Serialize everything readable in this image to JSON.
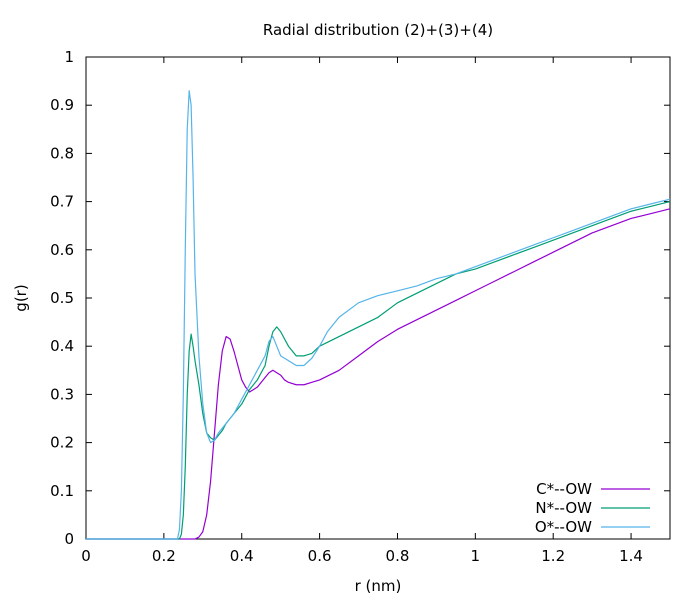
{
  "chart_data": {
    "type": "line",
    "title": "Radial distribution (2)+(3)+(4)",
    "xlabel": "r (nm)",
    "ylabel": "g(r)",
    "xlim": [
      0,
      1.5
    ],
    "ylim": [
      0,
      1
    ],
    "x_ticks": [
      0,
      0.2,
      0.4,
      0.6,
      0.8,
      1,
      1.2,
      1.4
    ],
    "x_tick_labels": [
      "0",
      "0.2",
      "0.4",
      "0.6",
      "0.8",
      "1",
      "1.2",
      "1.4"
    ],
    "y_ticks": [
      0,
      0.1,
      0.2,
      0.3,
      0.4,
      0.5,
      0.6,
      0.7,
      0.8,
      0.9,
      1
    ],
    "y_tick_labels": [
      "0",
      "0.1",
      "0.2",
      "0.3",
      "0.4",
      "0.5",
      "0.6",
      "0.7",
      "0.8",
      "0.9",
      "1"
    ],
    "grid": false,
    "legend_position": "bottom-right",
    "series": [
      {
        "name": "C*--OW",
        "color": "#9400d3",
        "points": [
          [
            0,
            0
          ],
          [
            0.28,
            0
          ],
          [
            0.29,
            0.004
          ],
          [
            0.3,
            0.015
          ],
          [
            0.31,
            0.05
          ],
          [
            0.32,
            0.12
          ],
          [
            0.33,
            0.22
          ],
          [
            0.34,
            0.32
          ],
          [
            0.35,
            0.39
          ],
          [
            0.36,
            0.42
          ],
          [
            0.37,
            0.415
          ],
          [
            0.38,
            0.39
          ],
          [
            0.39,
            0.36
          ],
          [
            0.4,
            0.33
          ],
          [
            0.41,
            0.315
          ],
          [
            0.42,
            0.305
          ],
          [
            0.43,
            0.31
          ],
          [
            0.44,
            0.315
          ],
          [
            0.45,
            0.325
          ],
          [
            0.46,
            0.335
          ],
          [
            0.47,
            0.345
          ],
          [
            0.48,
            0.35
          ],
          [
            0.49,
            0.345
          ],
          [
            0.5,
            0.34
          ],
          [
            0.51,
            0.33
          ],
          [
            0.52,
            0.325
          ],
          [
            0.54,
            0.32
          ],
          [
            0.56,
            0.32
          ],
          [
            0.58,
            0.325
          ],
          [
            0.6,
            0.33
          ],
          [
            0.65,
            0.35
          ],
          [
            0.7,
            0.38
          ],
          [
            0.75,
            0.41
          ],
          [
            0.8,
            0.435
          ],
          [
            0.85,
            0.455
          ],
          [
            0.9,
            0.475
          ],
          [
            0.95,
            0.495
          ],
          [
            1.0,
            0.515
          ],
          [
            1.05,
            0.535
          ],
          [
            1.1,
            0.555
          ],
          [
            1.15,
            0.575
          ],
          [
            1.2,
            0.595
          ],
          [
            1.25,
            0.615
          ],
          [
            1.3,
            0.635
          ],
          [
            1.35,
            0.65
          ],
          [
            1.4,
            0.665
          ],
          [
            1.45,
            0.675
          ],
          [
            1.5,
            0.685
          ]
        ]
      },
      {
        "name": "N*--OW",
        "color": "#009e73",
        "points": [
          [
            0,
            0
          ],
          [
            0.24,
            0
          ],
          [
            0.245,
            0.01
          ],
          [
            0.25,
            0.05
          ],
          [
            0.255,
            0.15
          ],
          [
            0.26,
            0.3
          ],
          [
            0.265,
            0.39
          ],
          [
            0.27,
            0.425
          ],
          [
            0.275,
            0.4
          ],
          [
            0.28,
            0.37
          ],
          [
            0.29,
            0.32
          ],
          [
            0.3,
            0.26
          ],
          [
            0.31,
            0.22
          ],
          [
            0.32,
            0.21
          ],
          [
            0.33,
            0.205
          ],
          [
            0.34,
            0.215
          ],
          [
            0.35,
            0.225
          ],
          [
            0.36,
            0.24
          ],
          [
            0.38,
            0.26
          ],
          [
            0.4,
            0.28
          ],
          [
            0.42,
            0.31
          ],
          [
            0.44,
            0.33
          ],
          [
            0.46,
            0.36
          ],
          [
            0.47,
            0.4
          ],
          [
            0.48,
            0.43
          ],
          [
            0.49,
            0.44
          ],
          [
            0.5,
            0.43
          ],
          [
            0.52,
            0.4
          ],
          [
            0.54,
            0.38
          ],
          [
            0.56,
            0.38
          ],
          [
            0.58,
            0.385
          ],
          [
            0.6,
            0.4
          ],
          [
            0.65,
            0.42
          ],
          [
            0.7,
            0.44
          ],
          [
            0.75,
            0.46
          ],
          [
            0.8,
            0.49
          ],
          [
            0.85,
            0.51
          ],
          [
            0.9,
            0.53
          ],
          [
            0.95,
            0.55
          ],
          [
            1.0,
            0.56
          ],
          [
            1.05,
            0.575
          ],
          [
            1.1,
            0.59
          ],
          [
            1.15,
            0.605
          ],
          [
            1.2,
            0.62
          ],
          [
            1.25,
            0.635
          ],
          [
            1.3,
            0.65
          ],
          [
            1.35,
            0.665
          ],
          [
            1.4,
            0.68
          ],
          [
            1.45,
            0.69
          ],
          [
            1.5,
            0.7
          ]
        ]
      },
      {
        "name": "O*--OW",
        "color": "#56b4e9",
        "points": [
          [
            0,
            0
          ],
          [
            0.235,
            0
          ],
          [
            0.24,
            0.02
          ],
          [
            0.245,
            0.1
          ],
          [
            0.25,
            0.3
          ],
          [
            0.255,
            0.6
          ],
          [
            0.26,
            0.85
          ],
          [
            0.265,
            0.93
          ],
          [
            0.27,
            0.9
          ],
          [
            0.275,
            0.75
          ],
          [
            0.28,
            0.55
          ],
          [
            0.29,
            0.38
          ],
          [
            0.3,
            0.28
          ],
          [
            0.31,
            0.22
          ],
          [
            0.32,
            0.2
          ],
          [
            0.33,
            0.205
          ],
          [
            0.34,
            0.22
          ],
          [
            0.35,
            0.23
          ],
          [
            0.36,
            0.24
          ],
          [
            0.38,
            0.26
          ],
          [
            0.4,
            0.29
          ],
          [
            0.42,
            0.32
          ],
          [
            0.44,
            0.35
          ],
          [
            0.46,
            0.38
          ],
          [
            0.47,
            0.41
          ],
          [
            0.48,
            0.42
          ],
          [
            0.49,
            0.4
          ],
          [
            0.5,
            0.38
          ],
          [
            0.52,
            0.37
          ],
          [
            0.54,
            0.36
          ],
          [
            0.56,
            0.36
          ],
          [
            0.58,
            0.375
          ],
          [
            0.6,
            0.4
          ],
          [
            0.62,
            0.43
          ],
          [
            0.65,
            0.46
          ],
          [
            0.7,
            0.49
          ],
          [
            0.75,
            0.505
          ],
          [
            0.8,
            0.515
          ],
          [
            0.85,
            0.525
          ],
          [
            0.9,
            0.54
          ],
          [
            0.95,
            0.55
          ],
          [
            1.0,
            0.565
          ],
          [
            1.05,
            0.58
          ],
          [
            1.1,
            0.595
          ],
          [
            1.15,
            0.61
          ],
          [
            1.2,
            0.625
          ],
          [
            1.25,
            0.64
          ],
          [
            1.3,
            0.655
          ],
          [
            1.35,
            0.67
          ],
          [
            1.4,
            0.685
          ],
          [
            1.45,
            0.695
          ],
          [
            1.5,
            0.705
          ]
        ]
      }
    ]
  }
}
